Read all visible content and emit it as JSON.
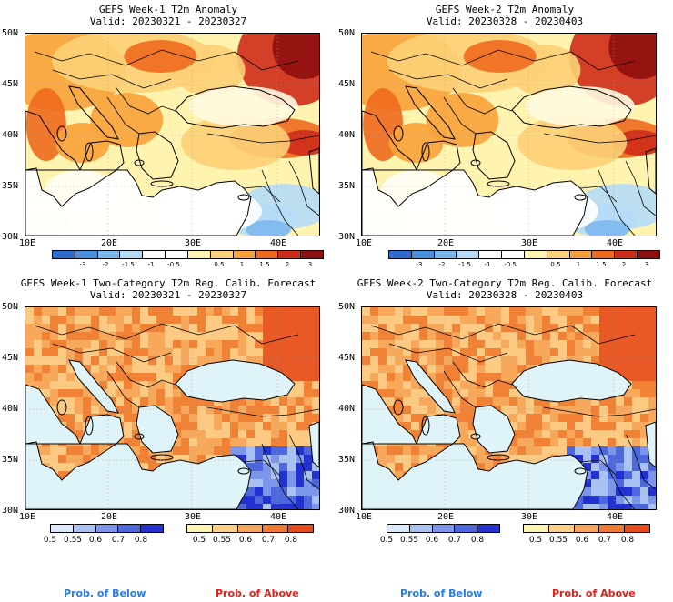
{
  "colors": {
    "anomaly_scale": [
      "#2a6fd0",
      "#4a90e0",
      "#7db8ee",
      "#b5dcf7",
      "#ffffff",
      "#ffffff",
      "#fff3b0",
      "#fdd077",
      "#f9a23a",
      "#ee6a1e",
      "#cf2b1a",
      "#8e1010"
    ],
    "prob_below": [
      "#dce8fb",
      "#aac2f2",
      "#7b96ea",
      "#4d67dc",
      "#2231d0"
    ],
    "prob_above": [
      "#fff3b0",
      "#fdd08a",
      "#f8a85b",
      "#ef7a2f",
      "#e64b1c"
    ],
    "sea_prob": "#dff4f8",
    "prob_below_text": "#2a7ae0",
    "prob_above_text": "#e0201a"
  },
  "panels": [
    {
      "id": "w1-anom",
      "kind": "anomaly",
      "title": "GEFS Week-1 T2m Anomaly",
      "valid": "Valid: 20230321 - 20230327"
    },
    {
      "id": "w2-anom",
      "kind": "anomaly",
      "title": "GEFS Week-2 T2m Anomaly",
      "valid": "Valid: 20230328 - 20230403"
    },
    {
      "id": "w1-prob",
      "kind": "prob",
      "title": "GEFS Week-1 Two-Category T2m Reg. Calib. Forecast",
      "valid": "Valid: 20230321 - 20230327"
    },
    {
      "id": "w2-prob",
      "kind": "prob",
      "title": "GEFS Week-2 Two-Category T2m Reg. Calib. Forecast",
      "valid": "Valid: 20230328 - 20230403"
    }
  ],
  "axes": {
    "lat_labels": [
      "50N",
      "45N",
      "40N",
      "35N",
      "30N"
    ],
    "lon_labels": [
      "10E",
      "20E",
      "30E",
      "40E"
    ]
  },
  "anomaly_colorbar": {
    "labels": [
      "-3",
      "-2",
      "-1.5",
      "-1",
      "-0.5",
      "0.5",
      "1",
      "1.5",
      "2",
      "3"
    ]
  },
  "prob_colorbar": {
    "labels": [
      "0.5",
      "0.55",
      "0.6",
      "0.7",
      "0.8"
    ]
  },
  "legend": {
    "below": "Prob. of Below",
    "above": "Prob. of Above"
  }
}
